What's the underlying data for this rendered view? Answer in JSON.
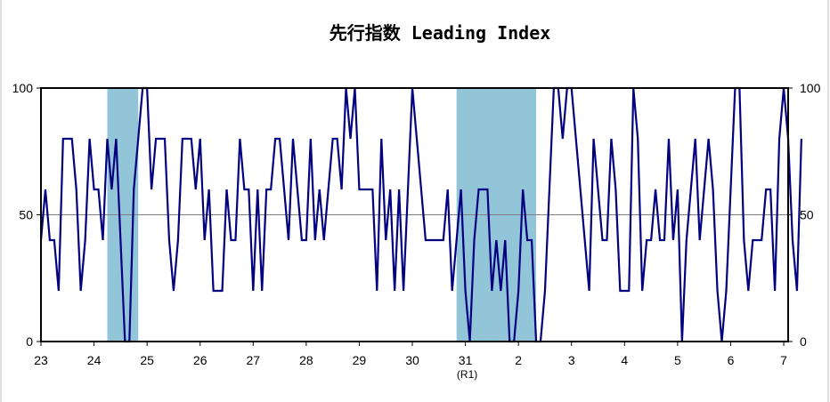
{
  "chart_data": {
    "type": "line",
    "title": "先行指数 Leading Index",
    "xlabel": "",
    "ylabel": "",
    "ylim": [
      0,
      100
    ],
    "yticks": [
      0,
      50,
      100
    ],
    "grid": "horizontal line at 50",
    "legend": "none",
    "x_tick_labels": [
      "23",
      "24",
      "25",
      "26",
      "27",
      "28",
      "29",
      "30",
      "31",
      "2",
      "3",
      "4",
      "5",
      "6",
      "7"
    ],
    "x_sub_label": "(R1)",
    "x_range": [
      "2011-01",
      "2025-02"
    ],
    "colors": {
      "line": "#000080",
      "recession": "#92c5d8",
      "grid": "#808080"
    },
    "recession_periods": [
      [
        "2012-04",
        "2012-11"
      ],
      [
        "2018-11",
        "2020-05"
      ]
    ],
    "series": [
      {
        "values": [
          40,
          60,
          40,
          40,
          20,
          80,
          80,
          80,
          60,
          20,
          40,
          80,
          60,
          60,
          40,
          80,
          60,
          80,
          40,
          0,
          0,
          60,
          80,
          100,
          100,
          60,
          80,
          80,
          80,
          40,
          20,
          40,
          80,
          80,
          80,
          60,
          80,
          40,
          60,
          20,
          20,
          20,
          60,
          40,
          40,
          80,
          60,
          60,
          20,
          60,
          20,
          60,
          60,
          80,
          80,
          60,
          40,
          80,
          60,
          40,
          40,
          80,
          40,
          60,
          40,
          60,
          80,
          80,
          60,
          100,
          80,
          100,
          60,
          60,
          60,
          60,
          20,
          80,
          40,
          60,
          20,
          60,
          20,
          60,
          100,
          80,
          60,
          40,
          40,
          40,
          40,
          40,
          60,
          20,
          40,
          60,
          20,
          0,
          40,
          60,
          60,
          60,
          20,
          40,
          20,
          40,
          0,
          0,
          20,
          60,
          40,
          40,
          0,
          0,
          20,
          60,
          100,
          100,
          80,
          100,
          100,
          80,
          60,
          40,
          20,
          80,
          60,
          40,
          40,
          80,
          60,
          20,
          20,
          20,
          100,
          80,
          20,
          40,
          40,
          60,
          40,
          40,
          80,
          40,
          60,
          0,
          40,
          60,
          80,
          40,
          60,
          80,
          60,
          20,
          0,
          20,
          60,
          100,
          100,
          40,
          20,
          40,
          40,
          40,
          60,
          60,
          20,
          80,
          100,
          80,
          40,
          20,
          80
        ]
      }
    ]
  }
}
